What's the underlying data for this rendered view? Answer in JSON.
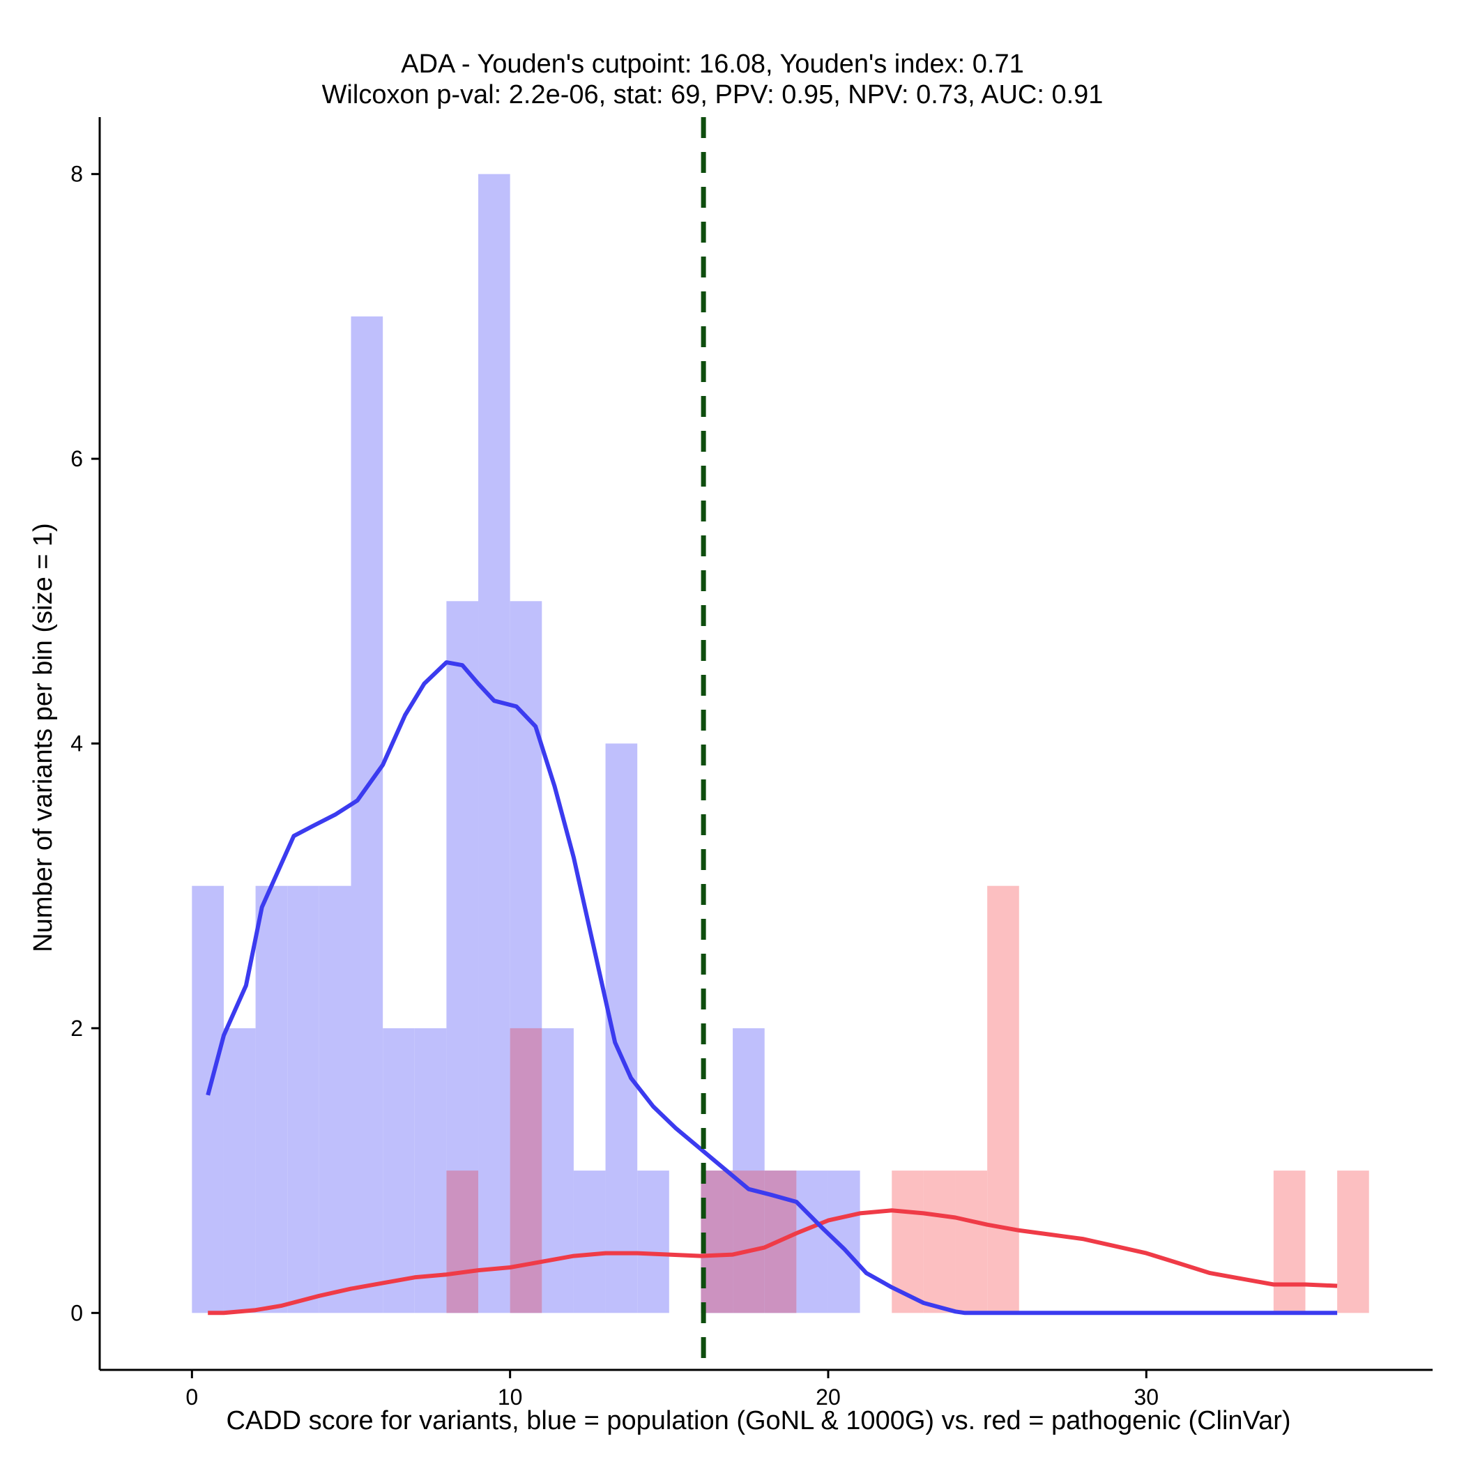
{
  "chart_data": {
    "type": "bar",
    "title_line1": "ADA - Youden's cutpoint: 16.08, Youden's index: 0.71",
    "title_line2": "Wilcoxon p-val: 2.2e-06, stat: 69, PPV: 0.95, NPV: 0.73, AUC: 0.91",
    "xlabel": "CADD score for variants, blue = population (GoNL & 1000G) vs. red = pathogenic (ClinVar)",
    "ylabel": "Number of variants per bin (size = 1)",
    "xlim": [
      -2.9,
      39
    ],
    "ylim": [
      -0.4,
      8.4
    ],
    "xticks": [
      0,
      10,
      20,
      30
    ],
    "yticks": [
      0,
      2,
      4,
      6,
      8
    ],
    "bin_width": 1,
    "cutpoint": 16.08,
    "colors": {
      "population_bar": "#bfbffc",
      "pathogenic_bar": "#fcbfc1",
      "overlap_bar": "#cc92c0",
      "population_line": "#3b3bef",
      "pathogenic_line": "#ef3b47",
      "cutpoint_line": "#0e4d0e"
    },
    "series": [
      {
        "name": "population (GoNL & 1000G)",
        "bins": [
          [
            0,
            3
          ],
          [
            1,
            2
          ],
          [
            2,
            3
          ],
          [
            3,
            3
          ],
          [
            4,
            3
          ],
          [
            5,
            7
          ],
          [
            6,
            2
          ],
          [
            7,
            2
          ],
          [
            8,
            5
          ],
          [
            9,
            8
          ],
          [
            10,
            5
          ],
          [
            11,
            2
          ],
          [
            12,
            1
          ],
          [
            13,
            4
          ],
          [
            14,
            1
          ],
          [
            16,
            1
          ],
          [
            17,
            2
          ],
          [
            18,
            1
          ],
          [
            19,
            1
          ],
          [
            20,
            1
          ]
        ],
        "density": [
          [
            0.5,
            1.53
          ],
          [
            1.0,
            1.95
          ],
          [
            1.7,
            2.3
          ],
          [
            2.2,
            2.85
          ],
          [
            2.7,
            3.1
          ],
          [
            3.2,
            3.35
          ],
          [
            3.8,
            3.42
          ],
          [
            4.5,
            3.5
          ],
          [
            5.2,
            3.6
          ],
          [
            6.0,
            3.85
          ],
          [
            6.7,
            4.2
          ],
          [
            7.3,
            4.42
          ],
          [
            8.0,
            4.57
          ],
          [
            8.5,
            4.55
          ],
          [
            9.0,
            4.42
          ],
          [
            9.5,
            4.3
          ],
          [
            10.2,
            4.26
          ],
          [
            10.8,
            4.12
          ],
          [
            11.4,
            3.7
          ],
          [
            12.0,
            3.2
          ],
          [
            12.7,
            2.5
          ],
          [
            13.3,
            1.9
          ],
          [
            13.8,
            1.65
          ],
          [
            14.5,
            1.45
          ],
          [
            15.2,
            1.3
          ],
          [
            16.0,
            1.15
          ],
          [
            16.8,
            1.0
          ],
          [
            17.5,
            0.87
          ],
          [
            18.2,
            0.83
          ],
          [
            19.0,
            0.78
          ],
          [
            19.8,
            0.6
          ],
          [
            20.5,
            0.45
          ],
          [
            21.2,
            0.28
          ],
          [
            22.0,
            0.18
          ],
          [
            23.0,
            0.07
          ],
          [
            24.0,
            0.01
          ],
          [
            24.3,
            0.0
          ],
          [
            36.0,
            0.0
          ]
        ]
      },
      {
        "name": "pathogenic (ClinVar)",
        "bins": [
          [
            8,
            1
          ],
          [
            10,
            2
          ],
          [
            16,
            1
          ],
          [
            17,
            1
          ],
          [
            18,
            1
          ],
          [
            22,
            1
          ],
          [
            23,
            1
          ],
          [
            24,
            1
          ],
          [
            25,
            3
          ],
          [
            34,
            1
          ],
          [
            36,
            1
          ]
        ],
        "density": [
          [
            0.5,
            0.0
          ],
          [
            1.0,
            0.0
          ],
          [
            2.0,
            0.02
          ],
          [
            2.8,
            0.05
          ],
          [
            4.0,
            0.12
          ],
          [
            5.0,
            0.17
          ],
          [
            6.0,
            0.21
          ],
          [
            7.0,
            0.25
          ],
          [
            8.0,
            0.27
          ],
          [
            9.0,
            0.3
          ],
          [
            10.0,
            0.32
          ],
          [
            11.0,
            0.36
          ],
          [
            12.0,
            0.4
          ],
          [
            13.0,
            0.42
          ],
          [
            14.0,
            0.42
          ],
          [
            15.0,
            0.41
          ],
          [
            16.0,
            0.4
          ],
          [
            17.0,
            0.41
          ],
          [
            18.0,
            0.46
          ],
          [
            19.0,
            0.56
          ],
          [
            20.0,
            0.65
          ],
          [
            21.0,
            0.7
          ],
          [
            22.0,
            0.72
          ],
          [
            23.0,
            0.7
          ],
          [
            24.0,
            0.67
          ],
          [
            25.0,
            0.62
          ],
          [
            26.0,
            0.58
          ],
          [
            27.0,
            0.55
          ],
          [
            28.0,
            0.52
          ],
          [
            29.0,
            0.47
          ],
          [
            30.0,
            0.42
          ],
          [
            31.0,
            0.35
          ],
          [
            32.0,
            0.28
          ],
          [
            33.0,
            0.24
          ],
          [
            34.0,
            0.2
          ],
          [
            35.0,
            0.2
          ],
          [
            36.0,
            0.19
          ]
        ]
      }
    ]
  }
}
